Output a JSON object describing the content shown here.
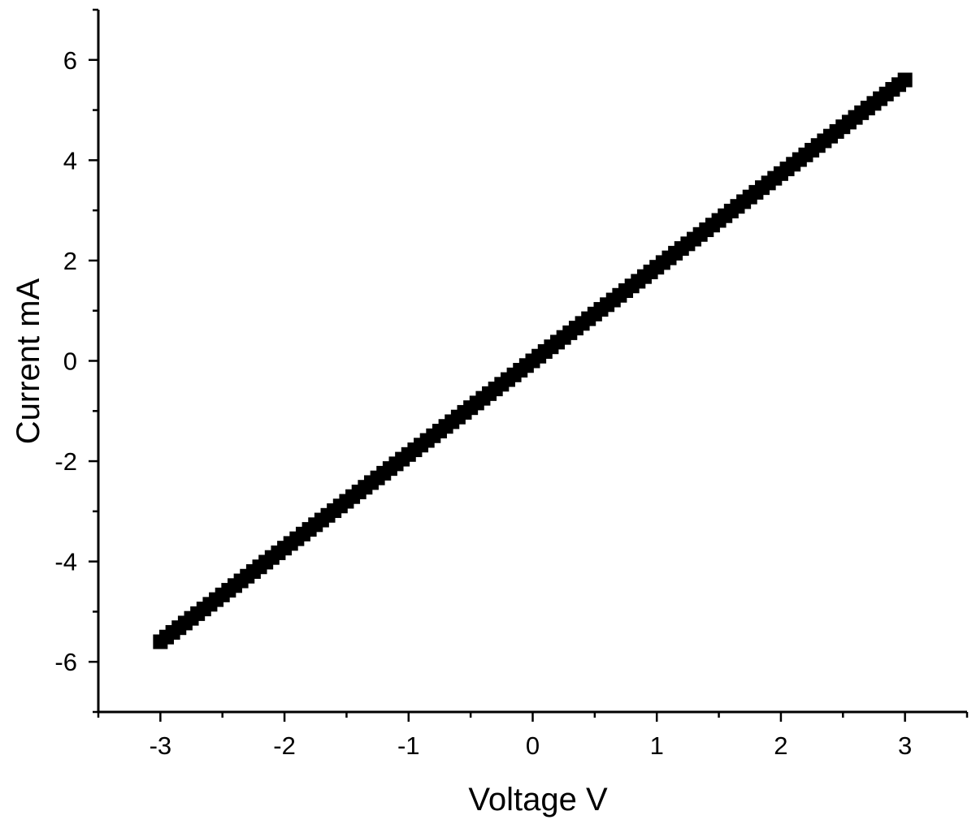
{
  "chart_data": {
    "type": "scatter",
    "title": "",
    "xlabel": "Voltage V",
    "ylabel": "Current mA",
    "xlim": [
      -3.5,
      3.5
    ],
    "ylim": [
      -7,
      7
    ],
    "x_ticks": [
      -3,
      -2,
      -1,
      0,
      1,
      2,
      3
    ],
    "x_tick_labels": [
      "-3",
      "-2",
      "-1",
      "0",
      "1",
      "2",
      "3"
    ],
    "y_ticks": [
      -6,
      -4,
      -2,
      0,
      2,
      4,
      6
    ],
    "y_tick_labels": [
      "-6",
      "-4",
      "-2",
      "0",
      "2",
      "4",
      "6"
    ],
    "x_minor_step": 0.5,
    "y_minor_step": 1,
    "grid": false,
    "legend": "none",
    "marker": "square",
    "marker_color": "#000000",
    "series": [
      {
        "x_range": [
          -3,
          3
        ],
        "y_range": [
          -5.6,
          5.6
        ],
        "point_count": 121,
        "relation": "linear, current = 1.867 × voltage"
      }
    ]
  }
}
